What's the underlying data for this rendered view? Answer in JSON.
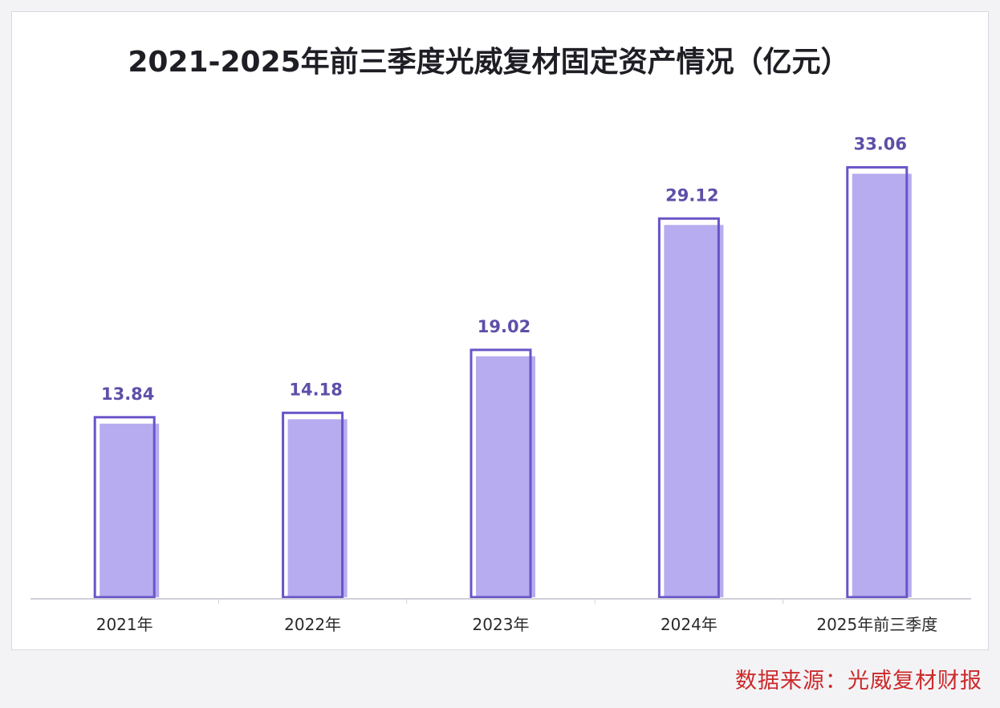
{
  "chart_data": {
    "type": "bar",
    "title": "2021-2025年前三季度光威复材固定资产情况（亿元）",
    "categories": [
      "2021年",
      "2022年",
      "2023年",
      "2024年",
      "2025年前三季度"
    ],
    "values": [
      13.84,
      14.18,
      19.02,
      29.12,
      33.06
    ],
    "data_labels": [
      "13.84",
      "14.18",
      "19.02",
      "29.12",
      "33.06"
    ],
    "xlabel": "",
    "ylabel": "",
    "ylim": [
      0,
      36
    ],
    "grid": false,
    "legend": "none"
  },
  "source": "数据来源：光威复材财报",
  "colors": {
    "bar_fill": "#b7acef",
    "bar_outline": "#6a54c8",
    "value_label": "#5e4fa8",
    "title": "#1e1e24",
    "source": "#cc2a2a",
    "axis": "#cfcfd8"
  }
}
